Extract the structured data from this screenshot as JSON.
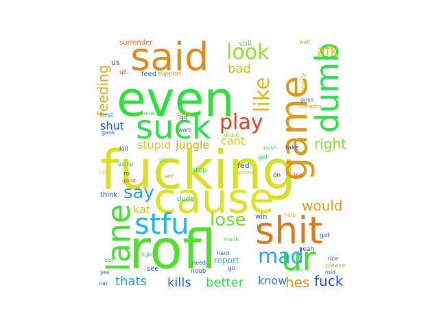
{
  "word_cloud": {
    "words": [
      {
        "text": "fucking",
        "color": "#d8e022"
      },
      {
        "text": "rofl",
        "color": "#4ee02a"
      },
      {
        "text": "even",
        "color": "#2ee03a"
      },
      {
        "text": "cause",
        "color": "#dfe21c"
      },
      {
        "text": "game",
        "color": "#e09a1a"
      },
      {
        "text": "said",
        "color": "#e08a18"
      },
      {
        "text": "shit",
        "color": "#e07818"
      },
      {
        "text": "stfu",
        "color": "#1fb8e6"
      },
      {
        "text": "suck",
        "color": "#2ee048"
      },
      {
        "text": "dumb",
        "color": "#2ee04a"
      },
      {
        "text": "lane",
        "color": "#46e02e"
      },
      {
        "text": "ur",
        "color": "#46e02e"
      },
      {
        "text": "play",
        "color": "#e0401a"
      },
      {
        "text": "look",
        "color": "#8fe02a"
      },
      {
        "text": "like",
        "color": "#e0b41e"
      },
      {
        "text": "lose",
        "color": "#6ee02a"
      },
      {
        "text": "mad",
        "color": "#22a8e8"
      },
      {
        "text": "say",
        "color": "#1fa2e8"
      },
      {
        "text": "feeding",
        "color": "#e0a81e"
      },
      {
        "text": "would",
        "color": "#e09a1a"
      },
      {
        "text": "right",
        "color": "#86e02a"
      },
      {
        "text": "fuck",
        "color": "#2050e0"
      },
      {
        "text": "hes",
        "color": "#e0901a"
      },
      {
        "text": "better",
        "color": "#2ee040"
      },
      {
        "text": "thats",
        "color": "#1aa0e0"
      },
      {
        "text": "kills",
        "color": "#2060e0"
      },
      {
        "text": "know",
        "color": "#2878e0"
      },
      {
        "text": "afk",
        "color": "#e0c41e"
      },
      {
        "text": "bad",
        "color": "#e0b81e"
      },
      {
        "text": "shut",
        "color": "#2050d8"
      },
      {
        "text": "cant",
        "color": "#e0c21e"
      },
      {
        "text": "jungle",
        "color": "#e0a01a"
      },
      {
        "text": "stupid",
        "color": "#e0c02a"
      },
      {
        "text": "kat",
        "color": "#e0c01e"
      },
      {
        "text": "report",
        "color": "#20b8e8"
      },
      {
        "text": "surrender",
        "color": "#e06a1c"
      },
      {
        "text": "still",
        "color": "#58e02a"
      },
      {
        "text": "us",
        "color": "#2050d8"
      },
      {
        "text": "feed",
        "color": "#2050d8"
      },
      {
        "text": "support",
        "color": "#e08e1a"
      },
      {
        "text": "ult",
        "color": "#e04a1a"
      },
      {
        "text": "first",
        "color": "#1ab0e0"
      },
      {
        "text": "one",
        "color": "#e0b81e"
      },
      {
        "text": "gg",
        "color": "#2050d8"
      },
      {
        "text": "wow",
        "color": "#2ee048"
      },
      {
        "text": "gank",
        "color": "#2050d8"
      },
      {
        "text": "wars",
        "color": "#2050d8"
      },
      {
        "text": "didnt",
        "color": "#86e02a"
      },
      {
        "text": "kill",
        "color": "#2050d8"
      },
      {
        "text": "going",
        "color": "#20b8e8"
      },
      {
        "text": "plz",
        "color": "#2ee048"
      },
      {
        "text": "fed",
        "color": "#2050d8"
      },
      {
        "text": "gonna",
        "color": "#e0a81e"
      },
      {
        "text": "get",
        "color": "#2ee048"
      },
      {
        "text": "push",
        "color": "#2ee040"
      },
      {
        "text": "take",
        "color": "#2050d8"
      },
      {
        "text": "stop",
        "color": "#2ee048"
      },
      {
        "text": "on",
        "color": "#2050d8"
      },
      {
        "text": "top",
        "color": "#e04a1a"
      },
      {
        "text": "time",
        "color": "#d8e022"
      },
      {
        "text": "ro",
        "color": "#2050d8"
      },
      {
        "text": "good",
        "color": "#e04a1a"
      },
      {
        "text": "wtf",
        "color": "#e0901a"
      },
      {
        "text": "think",
        "color": "#2050d8"
      },
      {
        "text": "dude",
        "color": "#20b8e8"
      },
      {
        "text": "yeah",
        "color": "#2050d8"
      },
      {
        "text": "win",
        "color": "#2050d8"
      },
      {
        "text": "help",
        "color": "#e0a81e"
      },
      {
        "text": "lol",
        "color": "#20b8e8"
      },
      {
        "text": "team",
        "color": "#2ee048"
      },
      {
        "text": "much",
        "color": "#2ee048"
      },
      {
        "text": "hard",
        "color": "#2050d8"
      },
      {
        "text": "light",
        "color": "#2ee048"
      },
      {
        "text": "see",
        "color": "#2050d8"
      },
      {
        "text": "noob",
        "color": "#2050d8"
      },
      {
        "text": "need",
        "color": "#2050d8"
      },
      {
        "text": "bot",
        "color": "#2ee048"
      },
      {
        "text": "go",
        "color": "#2050d8"
      },
      {
        "text": "nar",
        "color": "#2050d8"
      },
      {
        "text": "yes",
        "color": "#2050d8"
      },
      {
        "text": "please",
        "color": "#e0a81e"
      },
      {
        "text": "mid",
        "color": "#2050d8"
      },
      {
        "text": "rice",
        "color": "#2050d8"
      },
      {
        "text": "got",
        "color": "#2050d8"
      },
      {
        "text": "well",
        "color": "#e0a81e"
      },
      {
        "text": "really",
        "color": "#e0b81e"
      },
      {
        "text": "guys",
        "color": "#2050d8"
      },
      {
        "text": "champion",
        "color": "#e0901a"
      }
    ]
  }
}
